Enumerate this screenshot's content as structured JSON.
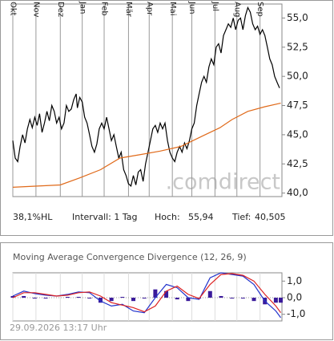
{
  "chart_data": [
    {
      "type": "line",
      "xlim": [
        0,
        221
      ],
      "ylim": [
        39.7,
        56.2
      ],
      "grid_x": true,
      "xticks": [
        {
          "value": 0,
          "label": "Okt"
        },
        {
          "value": 19,
          "label": "Nov"
        },
        {
          "value": 39,
          "label": "Dez"
        },
        {
          "value": 57,
          "label": "Jan"
        },
        {
          "value": 75,
          "label": "Feb"
        },
        {
          "value": 95,
          "label": "Mär"
        },
        {
          "value": 112,
          "label": "Apr"
        },
        {
          "value": 131,
          "label": "Mai"
        },
        {
          "value": 147,
          "label": "Jun"
        },
        {
          "value": 166,
          "label": "Jul"
        },
        {
          "value": 184,
          "label": "Aug"
        },
        {
          "value": 203,
          "label": "Sep"
        }
      ],
      "yticks": [
        {
          "value": 55,
          "label": "55,0"
        },
        {
          "value": 52.5,
          "label": "52,5"
        },
        {
          "value": 50,
          "label": "50,0"
        },
        {
          "value": 47.5,
          "label": "47,5"
        },
        {
          "value": 45,
          "label": "45,0"
        },
        {
          "value": 42.5,
          "label": "42,5"
        },
        {
          "value": 40,
          "label": "40,0"
        }
      ],
      "watermark": ".comdirect",
      "stats": [
        {
          "label": "38,1%HL"
        },
        {
          "label": "Intervall: 1 Tag"
        },
        {
          "label": "Hoch:",
          "value": "55,94"
        },
        {
          "label": "Tief:",
          "value": "40,505"
        }
      ],
      "series": [
        {
          "color": "#000000",
          "x": [
            0,
            2,
            4,
            6,
            8,
            10,
            12,
            14,
            16,
            18,
            20,
            22,
            24,
            26,
            28,
            30,
            32,
            34,
            36,
            38,
            40,
            42,
            44,
            46,
            48,
            50,
            52,
            53,
            55,
            57,
            59,
            61,
            63,
            65,
            67,
            69,
            71,
            73,
            75,
            77,
            79,
            81,
            83,
            85,
            87,
            89,
            91,
            93,
            95,
            97,
            99,
            101,
            103,
            105,
            107,
            109,
            111,
            113,
            115,
            117,
            119,
            121,
            123,
            125,
            127,
            129,
            131,
            133,
            135,
            137,
            139,
            141,
            143,
            145,
            147,
            149,
            151,
            153,
            155,
            157,
            159,
            161,
            163,
            165,
            167,
            169,
            171,
            173,
            175,
            177,
            179,
            181,
            183,
            185,
            187,
            189,
            191,
            193,
            195,
            197,
            199,
            201,
            203,
            205,
            207,
            209,
            211,
            213,
            215,
            217,
            219
          ],
          "values": [
            44.5,
            43.0,
            42.7,
            44.0,
            45.0,
            44.3,
            45.5,
            46.3,
            45.6,
            46.5,
            45.8,
            46.8,
            45.2,
            46.0,
            47.0,
            46.2,
            47.5,
            47.0,
            46.0,
            46.5,
            45.5,
            46.0,
            47.5,
            47.0,
            47.2,
            48.0,
            48.5,
            47.3,
            48.2,
            47.8,
            46.5,
            46.0,
            45.0,
            44.0,
            43.5,
            44.2,
            45.5,
            46.0,
            45.5,
            46.5,
            45.5,
            44.5,
            45.0,
            44.0,
            43.0,
            43.5,
            42.0,
            41.5,
            40.8,
            40.6,
            41.5,
            40.7,
            41.8,
            42.0,
            41.0,
            42.5,
            43.5,
            44.5,
            45.5,
            45.8,
            45.2,
            46.0,
            45.5,
            46.0,
            44.5,
            43.5,
            43.0,
            42.7,
            43.5,
            44.0,
            43.5,
            44.3,
            43.8,
            44.5,
            45.5,
            46.0,
            47.5,
            48.5,
            49.5,
            50.0,
            49.5,
            50.8,
            51.5,
            51.0,
            52.5,
            52.8,
            52.0,
            53.5,
            54.0,
            54.5,
            54.2,
            55.0,
            54.0,
            54.8,
            55.0,
            54.0,
            55.2,
            55.9,
            55.5,
            54.5,
            54.0,
            54.3,
            53.6,
            54.0,
            53.5,
            52.5,
            51.5,
            51.0,
            50.0,
            49.5,
            49.0
          ]
        },
        {
          "color": "#e06a1a",
          "x": [
            0,
            39,
            55,
            72,
            88,
            105,
            121,
            138,
            154,
            170,
            180,
            193,
            207,
            220
          ],
          "values": [
            40.5,
            40.7,
            41.3,
            42.0,
            43.0,
            43.3,
            43.6,
            44.0,
            44.8,
            45.6,
            46.3,
            47.0,
            47.4,
            47.7
          ]
        }
      ]
    },
    {
      "type": "line",
      "title": "Moving Average Convergence Divergence (12, 26, 9)",
      "timestamp": "29.09.2026 13:17 Uhr",
      "xlim": [
        0,
        221
      ],
      "ylim": [
        -1.4,
        1.5
      ],
      "grid_x": true,
      "xticks": [
        {
          "value": 0,
          "label": "Okt"
        },
        {
          "value": 19,
          "label": "Nov"
        },
        {
          "value": 39,
          "label": "Dez"
        },
        {
          "value": 57,
          "label": "Jan"
        },
        {
          "value": 75,
          "label": "Feb"
        },
        {
          "value": 95,
          "label": "Mär"
        },
        {
          "value": 112,
          "label": "Apr"
        },
        {
          "value": 131,
          "label": "Mai"
        },
        {
          "value": 147,
          "label": "Jun"
        },
        {
          "value": 166,
          "label": "Jul"
        },
        {
          "value": 184,
          "label": "Aug"
        },
        {
          "value": 203,
          "label": "Sep"
        }
      ],
      "yticks": [
        {
          "value": 1,
          "label": "1,0"
        },
        {
          "value": 0,
          "label": "0,0"
        },
        {
          "value": -1,
          "label": "-1,0"
        }
      ],
      "series": [
        {
          "type": "bar",
          "color": "#3a1a9a",
          "x": [
            0,
            9,
            18,
            27,
            36,
            45,
            54,
            63,
            72,
            81,
            90,
            99,
            108,
            117,
            126,
            135,
            144,
            153,
            162,
            171,
            180,
            189,
            198,
            207,
            216,
            220
          ],
          "values": [
            0.1,
            0.1,
            -0.05,
            -0.05,
            0,
            0.05,
            0.05,
            -0.05,
            -0.3,
            -0.2,
            0.05,
            -0.2,
            -0.05,
            0.5,
            0.4,
            -0.1,
            -0.2,
            -0.05,
            0.4,
            0.1,
            -0.05,
            -0.05,
            -0.2,
            -0.4,
            -0.3,
            -0.3
          ]
        },
        {
          "color": "#2233cc",
          "x": [
            0,
            9,
            18,
            27,
            36,
            45,
            54,
            63,
            72,
            81,
            90,
            99,
            108,
            117,
            126,
            135,
            144,
            153,
            162,
            171,
            180,
            189,
            198,
            207,
            216,
            220
          ],
          "values": [
            0.1,
            0.4,
            0.25,
            0.15,
            0.1,
            0.2,
            0.35,
            0.3,
            -0.2,
            -0.5,
            -0.4,
            -0.8,
            -0.9,
            0.0,
            0.8,
            0.6,
            0.0,
            -0.1,
            1.2,
            1.5,
            1.4,
            1.3,
            0.8,
            -0.2,
            -0.8,
            -1.2
          ]
        },
        {
          "color": "#dd2222",
          "x": [
            0,
            9,
            18,
            27,
            36,
            45,
            54,
            63,
            72,
            81,
            90,
            99,
            108,
            117,
            126,
            135,
            144,
            153,
            162,
            171,
            180,
            189,
            198,
            207,
            216,
            220
          ],
          "values": [
            0.0,
            0.3,
            0.3,
            0.2,
            0.1,
            0.15,
            0.3,
            0.35,
            0.1,
            -0.3,
            -0.45,
            -0.6,
            -0.85,
            -0.5,
            0.4,
            0.7,
            0.2,
            -0.05,
            0.8,
            1.4,
            1.45,
            1.35,
            1.0,
            0.2,
            -0.5,
            -0.9
          ]
        }
      ]
    }
  ]
}
